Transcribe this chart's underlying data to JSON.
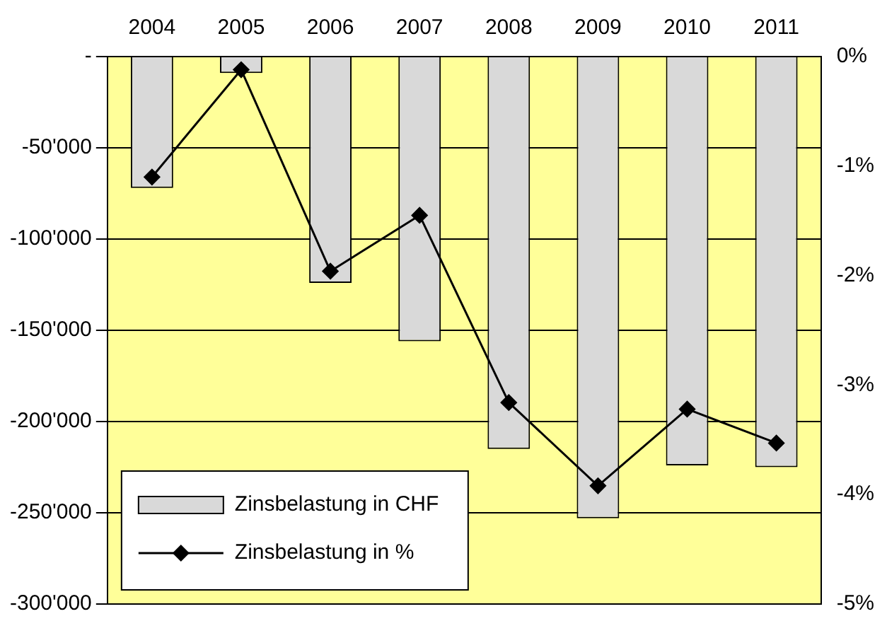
{
  "chart_data": {
    "type": "bar",
    "categories": [
      "2004",
      "2005",
      "2006",
      "2007",
      "2008",
      "2009",
      "2010",
      "2011"
    ],
    "series": [
      {
        "name": "Zinsbelastung in CHF",
        "color": "#d9d9d9",
        "values": [
          -72000,
          -9000,
          -124000,
          -156000,
          -215000,
          -253000,
          -224000,
          -225000
        ]
      },
      {
        "name": "Zinsbelastung in %",
        "type": "line",
        "axis": "y2",
        "color": "#000000",
        "values": [
          -1.1,
          -0.12,
          -1.96,
          -1.45,
          -3.16,
          -3.92,
          -3.22,
          -3.53
        ]
      }
    ],
    "ylim": [
      -300000,
      0
    ],
    "yticks": [
      {
        "value": -300000,
        "label": "-300'000"
      },
      {
        "value": -250000,
        "label": "-250'000"
      },
      {
        "value": -200000,
        "label": "-200'000"
      },
      {
        "value": -150000,
        "label": "-150'000"
      },
      {
        "value": -100000,
        "label": "-100'000"
      },
      {
        "value": -50000,
        "label": "-50'000"
      },
      {
        "value": 0,
        "label": "-"
      }
    ],
    "y2lim": [
      -5,
      0
    ],
    "y2ticks": [
      {
        "value": -5,
        "label": "-5%"
      },
      {
        "value": -4,
        "label": "-4%"
      },
      {
        "value": -3,
        "label": "-3%"
      },
      {
        "value": -2,
        "label": "-2%"
      },
      {
        "value": -1,
        "label": "-1%"
      },
      {
        "value": 0,
        "label": "0%"
      }
    ],
    "grid": "y",
    "legend": "bottom left",
    "marker": "diamond",
    "line_style": "solid"
  }
}
